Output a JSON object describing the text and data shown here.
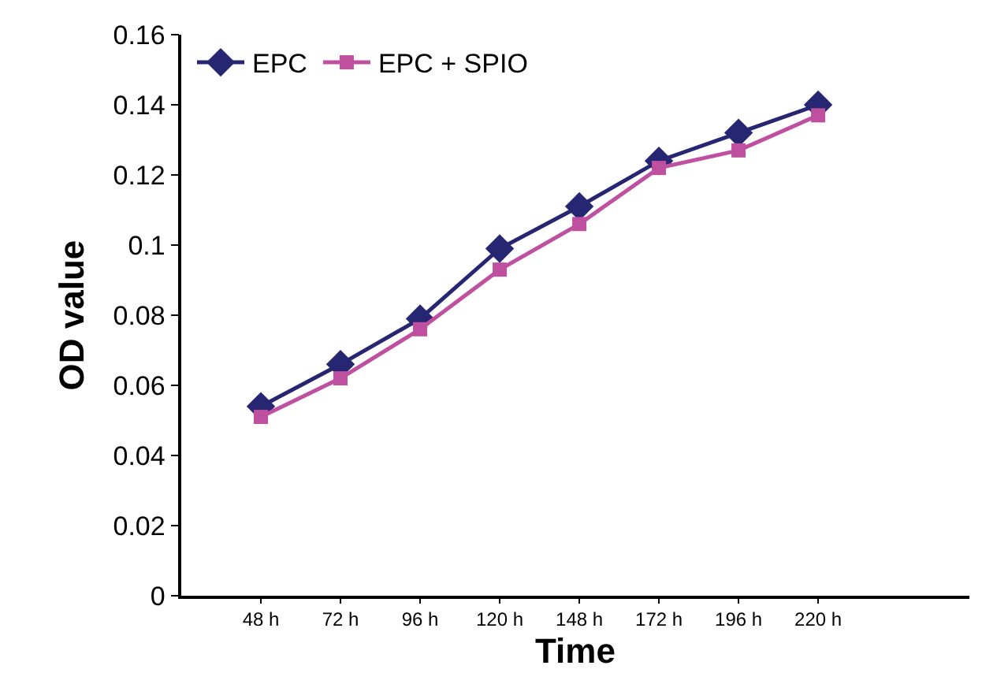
{
  "chart_data": {
    "type": "line",
    "xlabel": "Time",
    "ylabel": "OD value",
    "categories": [
      "48 h",
      "72 h",
      "96 h",
      "120 h",
      "148 h",
      "172 h",
      "196 h",
      "220 h"
    ],
    "series": [
      {
        "name": "EPC",
        "color": "#262673",
        "marker": "diamond",
        "values": [
          0.054,
          0.066,
          0.079,
          0.099,
          0.111,
          0.124,
          0.132,
          0.14
        ]
      },
      {
        "name": "EPC + SPIO",
        "color": "#bf4f9f",
        "marker": "square",
        "values": [
          0.051,
          0.062,
          0.076,
          0.093,
          0.106,
          0.122,
          0.127,
          0.137
        ]
      }
    ],
    "ylim": [
      0,
      0.16
    ],
    "yticks": [
      0,
      0.02,
      0.04,
      0.06,
      0.08,
      0.1,
      0.12,
      0.14,
      0.16
    ],
    "grid": false,
    "legend": "top left",
    "line_style": "solid"
  }
}
